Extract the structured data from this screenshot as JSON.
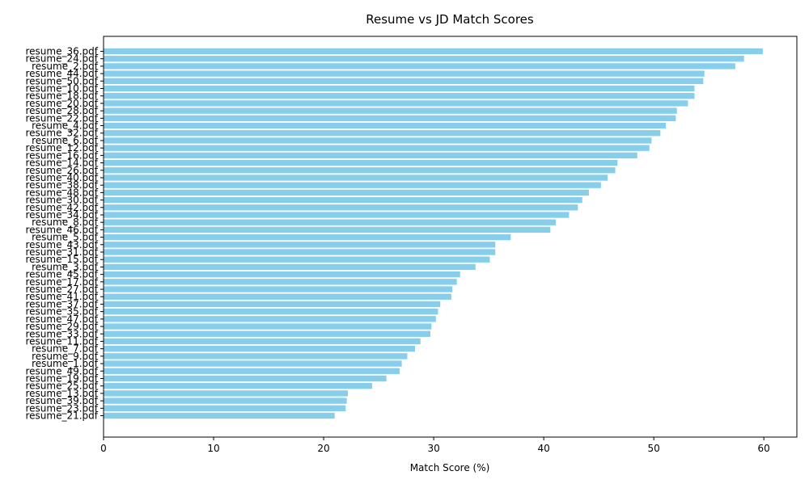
{
  "chart_data": {
    "type": "bar",
    "orientation": "horizontal",
    "title": "Resume vs JD Match Scores",
    "xlabel": "Match Score (%)",
    "ylabel": "",
    "xlim": [
      0,
      63
    ],
    "xticks": [
      0,
      10,
      20,
      30,
      40,
      50,
      60
    ],
    "grid": false,
    "bar_color": "#87ceeb",
    "categories": [
      "resume_36.pdf",
      "resume_24.pdf",
      "resume_2.pdf",
      "resume_44.pdf",
      "resume_50.pdf",
      "resume_10.pdf",
      "resume_18.pdf",
      "resume_20.pdf",
      "resume_28.pdf",
      "resume_22.pdf",
      "resume_4.pdf",
      "resume_32.pdf",
      "resume_6.pdf",
      "resume_12.pdf",
      "resume_16.pdf",
      "resume_14.pdf",
      "resume_26.pdf",
      "resume_40.pdf",
      "resume_38.pdf",
      "resume_48.pdf",
      "resume_30.pdf",
      "resume_42.pdf",
      "resume_34.pdf",
      "resume_8.pdf",
      "resume_46.pdf",
      "resume_5.pdf",
      "resume_43.pdf",
      "resume_31.pdf",
      "resume_15.pdf",
      "resume_3.pdf",
      "resume_45.pdf",
      "resume_17.pdf",
      "resume_27.pdf",
      "resume_41.pdf",
      "resume_37.pdf",
      "resume_35.pdf",
      "resume_47.pdf",
      "resume_29.pdf",
      "resume_33.pdf",
      "resume_11.pdf",
      "resume_7.pdf",
      "resume_9.pdf",
      "resume_1.pdf",
      "resume_49.pdf",
      "resume_19.pdf",
      "resume_25.pdf",
      "resume_13.pdf",
      "resume_39.pdf",
      "resume_23.pdf",
      "resume_21.pdf"
    ],
    "values": [
      59.9,
      58.2,
      57.4,
      54.6,
      54.5,
      53.7,
      53.7,
      53.1,
      52.1,
      52.0,
      51.1,
      50.6,
      49.8,
      49.6,
      48.5,
      46.7,
      46.5,
      45.8,
      45.2,
      44.1,
      43.5,
      43.1,
      42.3,
      41.1,
      40.6,
      37.0,
      35.6,
      35.6,
      35.1,
      33.8,
      32.4,
      32.1,
      31.7,
      31.6,
      30.6,
      30.4,
      30.2,
      29.8,
      29.7,
      28.8,
      28.3,
      27.6,
      27.1,
      26.9,
      25.7,
      24.4,
      22.2,
      22.1,
      22.0,
      21.0
    ]
  }
}
